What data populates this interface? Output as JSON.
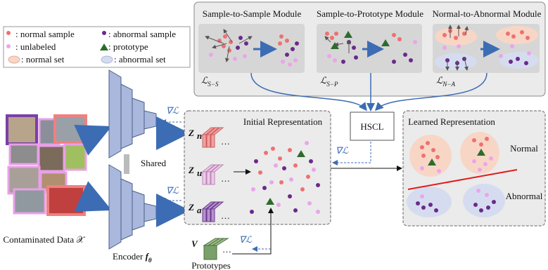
{
  "legend": [
    ": normal sample",
    ": abnormal sample",
    ": unlabeled",
    ": prototype",
    ": normal set",
    ": abnormal set"
  ],
  "modules": [
    {
      "title": "Sample-to-Sample Module",
      "loss": {
        "symbol": "ℒ",
        "sub": "S−S"
      }
    },
    {
      "title": "Sample-to-Prototype Module",
      "loss": {
        "symbol": "ℒ",
        "sub": "S−P"
      }
    },
    {
      "title": "Normal-to-Abnormal Module",
      "loss": {
        "symbol": "ℒ",
        "sub": "N−A"
      }
    }
  ],
  "gradient_labels": [
    "∇ℒ",
    "∇ℒ",
    "∇ℒ",
    "∇ℒ"
  ],
  "hscl": "HSCL",
  "initial_representation": {
    "title": "Initial Representation",
    "embeddings": [
      {
        "symbol": "Z",
        "sub": "n",
        "ellipsis": "…"
      },
      {
        "symbol": "Z",
        "sub": "u",
        "ellipsis": "…"
      },
      {
        "symbol": "Z",
        "sub": "a",
        "ellipsis": "…"
      }
    ]
  },
  "prototypes": {
    "symbol": "V",
    "ellipsis": "…",
    "label": "Prototypes"
  },
  "learned_representation": {
    "title": "Learned Representation",
    "normal": "Normal",
    "abnormal": "Abnormal"
  },
  "shared": "Shared",
  "data_label": "Contaminated Data 𝒳",
  "encoder": {
    "text": "Encoder ",
    "symbol": "f",
    "sub": "θ"
  }
}
